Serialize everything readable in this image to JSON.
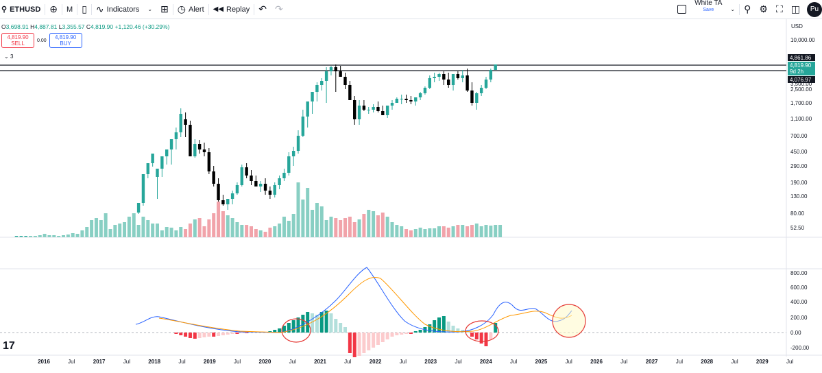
{
  "toolbar": {
    "symbol": "ETHUSD",
    "interval": "M",
    "indicators_label": "Indicators",
    "alert_label": "Alert",
    "replay_label": "Replay",
    "layout_name": "White TA",
    "layout_sub": "Save",
    "avatar": "Pu"
  },
  "ohlc": {
    "o": "3,698.91",
    "h": "4,887.81",
    "l": "3,355.57",
    "c": "4,819.90",
    "chg": "+1,120.46 (+30.29%)"
  },
  "trade": {
    "sell_price": "4,819.90",
    "sell_label": "SELL",
    "spread": "0.00",
    "buy_price": "4,819.90",
    "buy_label": "BUY"
  },
  "pane_collapse": "3",
  "price_axis": {
    "currency": "USD",
    "ticks": [
      "10,000.00",
      "3,500.00",
      "2,500.00",
      "1,700.00",
      "1,100.00",
      "700.00",
      "450.00",
      "290.00",
      "190.00",
      "130.00",
      "80.00",
      "52.50"
    ],
    "labels": {
      "high": "4,861.86",
      "last": "4,819.90",
      "countdown": "9d 2h",
      "low": "4,076.97"
    }
  },
  "macd_axis": {
    "ticks": [
      "800.00",
      "600.00",
      "400.00",
      "200.00",
      "0.00",
      "-200.00"
    ]
  },
  "time_axis": {
    "ticks": [
      "2016",
      "Jul",
      "2017",
      "Jul",
      "2018",
      "Jul",
      "2019",
      "Jul",
      "2020",
      "Jul",
      "2021",
      "Jul",
      "2022",
      "Jul",
      "2023",
      "Jul",
      "2024",
      "Jul",
      "2025",
      "Jul",
      "2026",
      "Jul",
      "2027",
      "Jul",
      "2028",
      "Jul",
      "2029",
      "Jul"
    ]
  },
  "colors": {
    "up": "#26a69a",
    "down": "#000000",
    "vol_up": "#88cfc3",
    "vol_down": "#f1a3aa",
    "macd": "#2962ff",
    "signal": "#ff9800",
    "hist_pos_strong": "#089981",
    "hist_pos_weak": "#b2dfdb",
    "hist_neg_strong": "#f23645",
    "hist_neg_weak": "#fccbcd",
    "circle": "#e53935",
    "circle_fill": "#fff9c4"
  },
  "logo_text": "17"
}
